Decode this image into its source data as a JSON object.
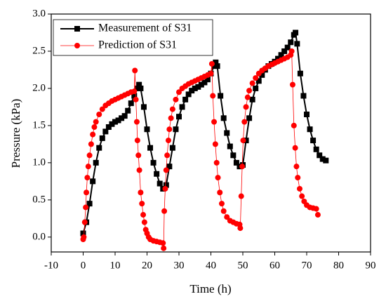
{
  "chart_data": {
    "type": "line",
    "x_label": "Time (h)",
    "y_label": "Pressure (kPa)",
    "xlim": [
      -10,
      90
    ],
    "xticks": [
      -10,
      0,
      10,
      20,
      30,
      40,
      50,
      60,
      70,
      80,
      90
    ],
    "ylim": [
      -0.2,
      3.0
    ],
    "yticks": [
      {
        "value": 0,
        "label": "0.0"
      },
      0.5,
      {
        "value": 1,
        "label": "1.0"
      },
      1.5,
      {
        "value": 2,
        "label": "2.0"
      },
      2.5,
      {
        "value": 3,
        "label": "3.0"
      }
    ],
    "legend": "upper left",
    "series": [
      {
        "name": "Measurement of S31",
        "color": "#000000",
        "marker": "square",
        "x": [
          0,
          1,
          2,
          3,
          4,
          5,
          6,
          7,
          8,
          9,
          10,
          11,
          12,
          13,
          14,
          15,
          16,
          17,
          17.5,
          18,
          19,
          20,
          21,
          22,
          23,
          24,
          25,
          26,
          27,
          28,
          29,
          30,
          31,
          32,
          33,
          34,
          35,
          36,
          37,
          38,
          39,
          40,
          41,
          41.5,
          42,
          43,
          44,
          45,
          46,
          47,
          48,
          49,
          50,
          51,
          52,
          53,
          54,
          55,
          56,
          57,
          58,
          59,
          60,
          61,
          62,
          63,
          64,
          65,
          66,
          66.5,
          67,
          68,
          69,
          70,
          71,
          72,
          73,
          74,
          75,
          76
        ],
        "values": [
          0.05,
          0.2,
          0.45,
          0.75,
          1.0,
          1.2,
          1.33,
          1.42,
          1.48,
          1.52,
          1.55,
          1.57,
          1.6,
          1.63,
          1.7,
          1.8,
          1.9,
          2.0,
          2.05,
          2.0,
          1.75,
          1.45,
          1.2,
          1.0,
          0.85,
          0.72,
          0.65,
          0.7,
          0.95,
          1.2,
          1.45,
          1.62,
          1.75,
          1.85,
          1.92,
          1.97,
          2.0,
          2.02,
          2.05,
          2.08,
          2.12,
          2.2,
          2.3,
          2.35,
          2.3,
          1.9,
          1.6,
          1.4,
          1.22,
          1.1,
          1.0,
          0.95,
          0.97,
          1.3,
          1.6,
          1.85,
          2.0,
          2.1,
          2.18,
          2.25,
          2.3,
          2.33,
          2.36,
          2.4,
          2.45,
          2.5,
          2.55,
          2.62,
          2.72,
          2.75,
          2.6,
          2.2,
          1.9,
          1.65,
          1.45,
          1.3,
          1.18,
          1.1,
          1.05,
          1.03
        ]
      },
      {
        "name": "Prediction of S31",
        "color": "#ff0000",
        "marker": "circle",
        "x": [
          0,
          0.2,
          0.5,
          0.8,
          1.0,
          1.3,
          1.6,
          2,
          2.5,
          3,
          3.5,
          4,
          5,
          6,
          7,
          8,
          9,
          10,
          11,
          12,
          13,
          14,
          15,
          16,
          16.2,
          16.5,
          16.8,
          17,
          17.3,
          17.6,
          18,
          18.4,
          18.8,
          19.2,
          19.6,
          20,
          20.5,
          21,
          22,
          23,
          24,
          25,
          25.2,
          25.4,
          25.7,
          26,
          26.3,
          26.7,
          27,
          27.5,
          28,
          29,
          30,
          31,
          32,
          33,
          34,
          35,
          36,
          37,
          38,
          39,
          40,
          40.3,
          40.6,
          41,
          41.4,
          41.8,
          42.2,
          42.8,
          43.4,
          44,
          45,
          46,
          47,
          48,
          49,
          49.2,
          49.5,
          49.8,
          50.1,
          50.5,
          51,
          51.5,
          52,
          53,
          54,
          55,
          56,
          57,
          58,
          59,
          60,
          61,
          62,
          63,
          64,
          65,
          65.3,
          65.6,
          66,
          66.4,
          66.8,
          67.2,
          67.8,
          68.5,
          69.2,
          70,
          71,
          72,
          73,
          73.5
        ],
        "values": [
          -0.03,
          0.0,
          0.2,
          0.4,
          0.6,
          0.8,
          0.95,
          1.1,
          1.25,
          1.38,
          1.48,
          1.55,
          1.65,
          1.72,
          1.77,
          1.8,
          1.83,
          1.85,
          1.87,
          1.89,
          1.91,
          1.93,
          1.95,
          1.96,
          2.24,
          1.85,
          1.55,
          1.3,
          1.1,
          0.9,
          0.6,
          0.45,
          0.3,
          0.2,
          0.1,
          0.05,
          0.0,
          -0.03,
          -0.05,
          -0.06,
          -0.07,
          -0.08,
          -0.15,
          0.35,
          0.65,
          0.9,
          1.1,
          1.3,
          1.45,
          1.6,
          1.72,
          1.85,
          1.95,
          2.0,
          2.03,
          2.06,
          2.08,
          2.1,
          2.12,
          2.14,
          2.16,
          2.18,
          2.2,
          2.33,
          1.9,
          1.55,
          1.25,
          1.0,
          0.8,
          0.6,
          0.45,
          0.35,
          0.27,
          0.22,
          0.2,
          0.18,
          0.17,
          0.12,
          0.55,
          0.95,
          1.3,
          1.55,
          1.75,
          1.88,
          1.97,
          2.07,
          2.14,
          2.2,
          2.24,
          2.27,
          2.3,
          2.32,
          2.34,
          2.36,
          2.38,
          2.4,
          2.42,
          2.45,
          2.5,
          2.05,
          1.5,
          1.2,
          0.95,
          0.8,
          0.65,
          0.55,
          0.48,
          0.43,
          0.4,
          0.39,
          0.38,
          0.3
        ]
      }
    ]
  }
}
